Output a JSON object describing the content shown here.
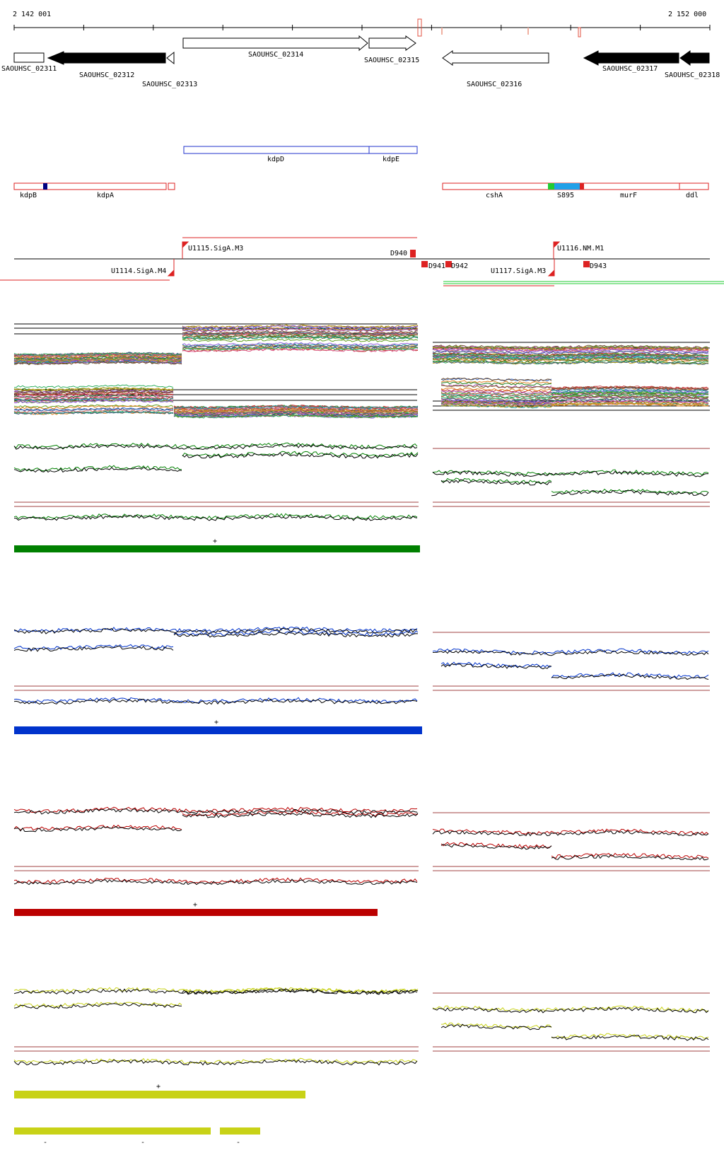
{
  "ruler": {
    "start_label": "2 142 001",
    "end_label": "2 152 000"
  },
  "genes": [
    {
      "label": "SAOUHSC_02311",
      "strand": "+",
      "fill": "white"
    },
    {
      "label": "SAOUHSC_02312",
      "strand": "-",
      "fill": "black"
    },
    {
      "label": "SAOUHSC_02313",
      "strand": "-",
      "fill": "white"
    },
    {
      "label": "SAOUHSC_02314",
      "strand": "+",
      "fill": "white"
    },
    {
      "label": "SAOUHSC_02315",
      "strand": "+",
      "fill": "white"
    },
    {
      "label": "SAOUHSC_02316",
      "strand": "-",
      "fill": "white"
    },
    {
      "label": "SAOUHSC_02317",
      "strand": "-",
      "fill": "black"
    },
    {
      "label": "SAOUHSC_02318",
      "strand": "-",
      "fill": "black"
    }
  ],
  "operons_blue": [
    {
      "label": "kdpD"
    },
    {
      "label": "kdpE"
    }
  ],
  "operons_red": [
    {
      "label": "kdpB"
    },
    {
      "label": "kdpA"
    },
    {
      "label": "cshA"
    },
    {
      "label": "S895"
    },
    {
      "label": "murF"
    },
    {
      "label": "ddl"
    }
  ],
  "promoters": [
    {
      "label": "U1115.SigA.M3"
    },
    {
      "label": "U1114.SigA.M4"
    },
    {
      "label": "D940"
    },
    {
      "label": "D941"
    },
    {
      "label": "D942"
    },
    {
      "label": "U1117.SigA.M3"
    },
    {
      "label": "U1116.NM.M1"
    },
    {
      "label": "D943"
    }
  ],
  "colors": {
    "green": "#008000",
    "blue": "#0033cc",
    "red": "#bb0000",
    "yellow": "#c8d217",
    "gene_outline": "#000000",
    "operon_red": "#dd2222",
    "operon_blue": "#2233cc",
    "s895_blue": "#22a0e8",
    "s895_green": "#22cc33",
    "kdpb_mark": "#000080"
  },
  "condition_bars": {
    "green_strand": "+",
    "blue_strand": "+",
    "red_strand": "+",
    "yellow_strand": "+",
    "yellow_lower_strand": "-"
  }
}
